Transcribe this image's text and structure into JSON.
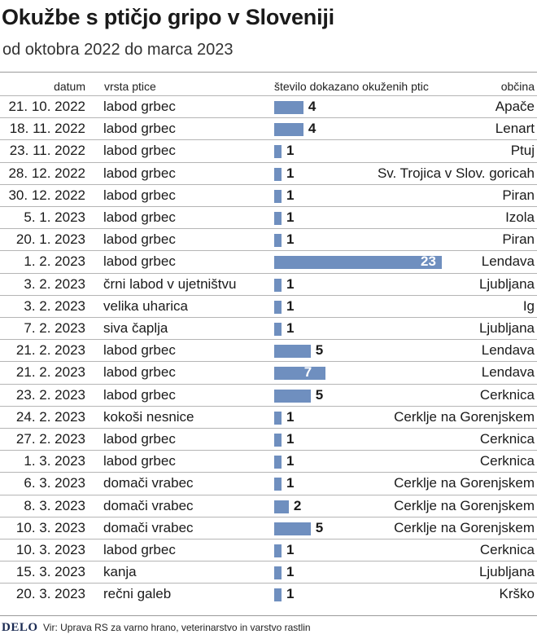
{
  "header": {
    "title": "Okužbe s ptičjo gripo v Sloveniji",
    "subtitle": "od oktobra 2022 do marca 2023"
  },
  "columns": {
    "date": "datum",
    "bird": "vrsta ptice",
    "count": "število dokazano okuženih ptic",
    "place": "občina"
  },
  "chart_data": {
    "type": "bar",
    "title": "Okužbe s ptičjo gripo v Sloveniji",
    "subtitle": "od oktobra 2022 do marca 2023",
    "value_label": "število dokazano okuženih ptic",
    "bar_color": "#6f8fbf",
    "xlim": [
      0,
      23
    ],
    "rows": [
      {
        "date": "21. 10. 2022",
        "bird": "labod grbec",
        "value": 4,
        "place": "Apače"
      },
      {
        "date": "18. 11. 2022",
        "bird": "labod grbec",
        "value": 4,
        "place": "Lenart"
      },
      {
        "date": "23. 11. 2022",
        "bird": "labod grbec",
        "value": 1,
        "place": "Ptuj"
      },
      {
        "date": "28. 12. 2022",
        "bird": "labod grbec",
        "value": 1,
        "place": "Sv. Trojica v Slov. goricah"
      },
      {
        "date": "30. 12. 2022",
        "bird": "labod grbec",
        "value": 1,
        "place": "Piran"
      },
      {
        "date": "5. 1. 2023",
        "bird": "labod grbec",
        "value": 1,
        "place": "Izola"
      },
      {
        "date": "20. 1. 2023",
        "bird": "labod grbec",
        "value": 1,
        "place": "Piran"
      },
      {
        "date": "1. 2. 2023",
        "bird": "labod grbec",
        "value": 23,
        "place": "Lendava"
      },
      {
        "date": "3. 2. 2023",
        "bird": "črni labod v ujetništvu",
        "value": 1,
        "place": "Ljubljana"
      },
      {
        "date": "3. 2. 2023",
        "bird": "velika uharica",
        "value": 1,
        "place": "Ig"
      },
      {
        "date": "7. 2. 2023",
        "bird": "siva čaplja",
        "value": 1,
        "place": "Ljubljana"
      },
      {
        "date": "21. 2. 2023",
        "bird": "labod grbec",
        "value": 5,
        "place": "Lendava"
      },
      {
        "date": "21. 2. 2023",
        "bird": "labod grbec",
        "value": 7,
        "place": "Lendava"
      },
      {
        "date": "23. 2. 2023",
        "bird": "labod grbec",
        "value": 5,
        "place": "Cerknica"
      },
      {
        "date": "24. 2. 2023",
        "bird": "kokoši nesnice",
        "value": 1,
        "place": "Cerklje na Gorenjskem"
      },
      {
        "date": "27. 2. 2023",
        "bird": "labod grbec",
        "value": 1,
        "place": "Cerknica"
      },
      {
        "date": "1. 3. 2023",
        "bird": "labod grbec",
        "value": 1,
        "place": "Cerknica"
      },
      {
        "date": "6. 3. 2023",
        "bird": "domači vrabec",
        "value": 1,
        "place": "Cerklje na Gorenjskem"
      },
      {
        "date": "8. 3. 2023",
        "bird": "domači vrabec",
        "value": 2,
        "place": "Cerklje na Gorenjskem"
      },
      {
        "date": "10. 3. 2023",
        "bird": "domači vrabec",
        "value": 5,
        "place": "Cerklje na Gorenjskem"
      },
      {
        "date": "10. 3. 2023",
        "bird": "labod grbec",
        "value": 1,
        "place": "Cerknica"
      },
      {
        "date": "15. 3. 2023",
        "bird": "kanja",
        "value": 1,
        "place": "Ljubljana"
      },
      {
        "date": "20. 3. 2023",
        "bird": "rečni galeb",
        "value": 1,
        "place": "Krško"
      }
    ]
  },
  "footer": {
    "logo": "DELO",
    "source": "Vir:  Uprava RS za varno hrano, veterinarstvo in varstvo rastlin"
  }
}
